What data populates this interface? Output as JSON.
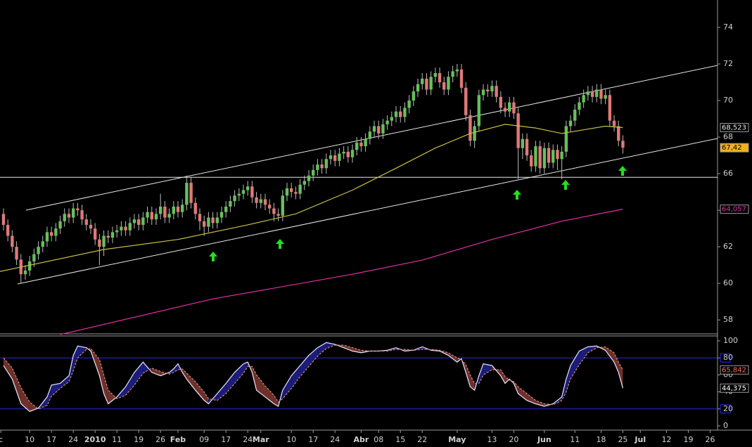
{
  "chart_data": [
    {
      "type": "candlestick",
      "xlim": [
        -0.8,
        163.7
      ],
      "ylim": [
        57.2,
        75.5
      ],
      "yticks": [
        58,
        60,
        62,
        64,
        66,
        68,
        70,
        72,
        74
      ],
      "up_color": "#66c05a",
      "down_color": "#e07878",
      "wick_color": "#bbbbbb",
      "open": [
        63.8,
        63.2,
        62.6,
        62.0,
        61.3,
        60.5,
        60.7,
        61.2,
        61.6,
        62.0,
        62.3,
        62.8,
        62.6,
        63.0,
        63.4,
        63.8,
        63.6,
        64.1,
        64.0,
        63.5,
        63.2,
        63.0,
        62.4,
        62.0,
        62.6,
        62.5,
        62.8,
        62.9,
        63.1,
        62.9,
        63.3,
        63.5,
        63.2,
        63.6,
        63.9,
        63.5,
        63.8,
        64.2,
        63.6,
        63.8,
        64.2,
        63.9,
        64.3,
        65.5,
        64.4,
        63.8,
        63.4,
        63.1,
        63.6,
        63.3,
        63.6,
        63.9,
        64.2,
        64.5,
        64.8,
        64.9,
        65.1,
        65.3,
        64.7,
        64.4,
        64.6,
        64.3,
        64.1,
        63.8,
        63.7,
        64.8,
        65.2,
        65.0,
        64.9,
        65.4,
        65.6,
        65.9,
        66.2,
        66.5,
        66.3,
        66.8,
        67.0,
        66.7,
        67.1,
        67.2,
        66.9,
        67.3,
        67.7,
        67.5,
        67.9,
        68.3,
        68.6,
        68.2,
        68.7,
        68.9,
        69.1,
        69.4,
        69.1,
        69.6,
        70.0,
        70.5,
        70.9,
        71.2,
        70.6,
        71.3,
        71.5,
        71.0,
        70.6,
        71.3,
        71.6,
        71.7,
        70.7,
        69.2,
        67.8,
        68.6,
        70.3,
        70.6,
        70.5,
        70.8,
        70.2,
        69.6,
        69.4,
        69.9,
        69.3,
        67.4,
        67.9,
        67.0,
        66.4,
        67.5,
        66.3,
        67.4,
        66.6,
        67.3,
        66.8,
        67.2,
        68.6,
        68.9,
        69.5,
        69.9,
        70.3,
        70.5,
        70.2,
        70.6,
        70.1,
        70.3,
        68.9,
        68.6,
        67.8
      ],
      "high": [
        64.1,
        63.5,
        62.9,
        62.3,
        61.6,
        61.0,
        61.5,
        61.9,
        62.3,
        62.6,
        63.1,
        63.1,
        63.3,
        63.7,
        64.1,
        64.1,
        64.4,
        64.4,
        64.3,
        63.8,
        63.5,
        63.3,
        62.7,
        62.9,
        62.9,
        63.1,
        63.2,
        63.4,
        63.4,
        63.6,
        63.8,
        63.8,
        63.9,
        64.2,
        64.2,
        64.1,
        64.9,
        64.5,
        64.1,
        64.5,
        64.5,
        64.6,
        65.9,
        65.8,
        64.7,
        64.1,
        63.7,
        63.9,
        63.9,
        63.9,
        64.2,
        64.5,
        64.8,
        65.1,
        65.2,
        65.4,
        65.6,
        65.6,
        65.0,
        64.9,
        64.9,
        64.6,
        64.4,
        64.1,
        65.1,
        65.5,
        65.5,
        65.3,
        65.7,
        65.9,
        66.2,
        66.5,
        66.8,
        66.8,
        67.1,
        67.3,
        67.3,
        67.4,
        67.5,
        67.5,
        67.6,
        68.0,
        68.0,
        68.2,
        68.6,
        68.9,
        68.9,
        69.0,
        69.2,
        69.4,
        69.7,
        69.7,
        69.9,
        70.3,
        70.8,
        71.2,
        71.5,
        71.5,
        71.6,
        71.8,
        71.8,
        71.3,
        71.6,
        71.9,
        72.0,
        72.0,
        71.0,
        69.5,
        68.9,
        70.6,
        70.9,
        70.9,
        71.1,
        71.1,
        70.5,
        69.9,
        70.2,
        70.2,
        69.6,
        68.2,
        68.2,
        67.3,
        67.8,
        67.8,
        67.7,
        67.7,
        67.6,
        67.6,
        67.5,
        68.9,
        69.2,
        69.8,
        70.2,
        70.6,
        70.8,
        70.8,
        70.9,
        70.9,
        70.6,
        70.6,
        69.2,
        68.9,
        68.1
      ],
      "low": [
        62.9,
        62.3,
        61.7,
        61.0,
        60.0,
        60.2,
        60.4,
        60.9,
        61.3,
        61.7,
        62.0,
        62.3,
        62.3,
        62.7,
        63.1,
        63.3,
        63.3,
        63.7,
        63.2,
        62.9,
        62.7,
        62.1,
        61.0,
        61.5,
        62.2,
        62.2,
        62.5,
        62.6,
        62.6,
        62.6,
        63.0,
        62.9,
        62.9,
        63.3,
        63.2,
        63.2,
        63.5,
        63.3,
        63.3,
        63.5,
        63.6,
        63.6,
        64.0,
        64.1,
        63.5,
        62.9,
        62.6,
        62.8,
        63.0,
        63.0,
        63.3,
        63.6,
        63.9,
        64.2,
        64.5,
        64.6,
        64.8,
        64.4,
        64.1,
        64.1,
        64.0,
        63.8,
        63.4,
        63.4,
        63.4,
        64.5,
        64.7,
        64.6,
        64.6,
        65.1,
        65.3,
        65.6,
        65.9,
        66.0,
        66.0,
        66.5,
        66.4,
        66.4,
        66.8,
        66.6,
        66.6,
        67.0,
        67.2,
        67.2,
        67.6,
        68.0,
        67.9,
        67.9,
        68.4,
        68.6,
        68.8,
        68.8,
        68.8,
        69.3,
        69.7,
        70.2,
        70.6,
        70.3,
        70.3,
        71.0,
        70.7,
        70.3,
        70.3,
        71.0,
        71.3,
        70.4,
        68.9,
        67.5,
        67.4,
        68.3,
        70.0,
        70.2,
        70.2,
        69.9,
        69.3,
        69.1,
        69.1,
        69.0,
        65.7,
        66.8,
        66.7,
        66.1,
        66.1,
        66.0,
        66.0,
        66.3,
        66.3,
        66.2,
        65.7,
        66.9,
        68.3,
        68.6,
        69.2,
        69.6,
        70.0,
        69.9,
        69.9,
        69.8,
        69.8,
        68.6,
        68.3,
        67.5,
        67.1
      ],
      "close": [
        63.2,
        62.6,
        62.0,
        61.3,
        60.5,
        60.7,
        61.2,
        61.6,
        62.0,
        62.3,
        62.8,
        62.6,
        63.0,
        63.4,
        63.8,
        63.6,
        64.1,
        64.0,
        63.5,
        63.2,
        63.0,
        62.4,
        62.0,
        62.6,
        62.5,
        62.8,
        62.9,
        63.1,
        62.9,
        63.3,
        63.5,
        63.2,
        63.6,
        63.9,
        63.5,
        63.8,
        64.2,
        63.6,
        63.8,
        64.2,
        63.9,
        64.3,
        65.5,
        64.4,
        63.8,
        63.4,
        63.1,
        63.6,
        63.3,
        63.6,
        63.9,
        64.2,
        64.5,
        64.8,
        64.9,
        65.1,
        65.3,
        64.7,
        64.4,
        64.6,
        64.3,
        64.1,
        63.8,
        63.7,
        64.8,
        65.2,
        65.0,
        64.9,
        65.4,
        65.6,
        65.9,
        66.2,
        66.5,
        66.3,
        66.8,
        67.0,
        66.7,
        67.1,
        67.2,
        66.9,
        67.3,
        67.7,
        67.5,
        67.9,
        68.3,
        68.6,
        68.2,
        68.7,
        68.9,
        69.1,
        69.4,
        69.1,
        69.6,
        70.0,
        70.5,
        70.9,
        71.2,
        70.6,
        71.3,
        71.5,
        71.0,
        70.6,
        71.3,
        71.6,
        71.7,
        70.7,
        69.2,
        67.8,
        68.6,
        70.3,
        70.6,
        70.5,
        70.8,
        70.2,
        69.6,
        69.4,
        69.9,
        69.3,
        67.4,
        67.9,
        67.0,
        66.4,
        67.5,
        66.3,
        67.4,
        66.6,
        67.3,
        66.8,
        67.2,
        68.6,
        68.9,
        69.5,
        69.9,
        70.3,
        70.5,
        70.2,
        70.6,
        70.1,
        70.3,
        68.9,
        68.6,
        67.8,
        67.42
      ],
      "series": [
        {
          "color": "#c8c040",
          "x": [
            -0.8,
            23,
            40,
            56,
            67,
            80,
            90,
            99,
            107,
            115,
            122,
            128,
            133,
            138,
            142
          ],
          "values": [
            60.65,
            61.85,
            62.4,
            63.2,
            63.8,
            65.1,
            66.3,
            67.4,
            68.2,
            68.7,
            68.5,
            68.2,
            68.4,
            68.6,
            68.523
          ]
        },
        {
          "color": "#e030a0",
          "x": [
            13,
            48,
            80,
            96,
            112,
            128,
            142
          ],
          "values": [
            57.2,
            59.15,
            60.5,
            61.27,
            62.4,
            63.4,
            64.057
          ]
        }
      ],
      "support_level": 65.8,
      "end_labels": [
        {
          "value": 68.523,
          "label": "68,523",
          "color": "#e8e8e8",
          "box": "#000000"
        },
        {
          "value": 67.42,
          "label": "67,42",
          "color": "#000000",
          "box": "#f0b020"
        },
        {
          "value": 64.057,
          "label": "64,057",
          "color": "#e030a0",
          "box": "#000000"
        }
      ]
    },
    {
      "type": "line",
      "xlim": [
        -0.8,
        163.7
      ],
      "ylim": [
        -5,
        105.8
      ],
      "yticks": [
        0,
        20,
        40,
        60,
        80,
        100
      ],
      "levels": [
        20,
        80
      ],
      "level_color": "#2a2ae0",
      "fill_above": "#1c1c7a",
      "fill_below": "#70302a",
      "xticks": [
        {
          "value": -0.6,
          "label": "c"
        },
        {
          "value": 6,
          "label": "10"
        },
        {
          "value": 11,
          "label": "17"
        },
        {
          "value": 16,
          "label": "24"
        },
        {
          "value": 21,
          "label": "2010",
          "bold": true
        },
        {
          "value": 26,
          "label": "11"
        },
        {
          "value": 31,
          "label": "19"
        },
        {
          "value": 36,
          "label": "26"
        },
        {
          "value": 40,
          "label": "Feb",
          "bold": true
        },
        {
          "value": 46,
          "label": "09"
        },
        {
          "value": 51,
          "label": "17"
        },
        {
          "value": 56,
          "label": "24"
        },
        {
          "value": 59,
          "label": "Mar",
          "bold": true
        },
        {
          "value": 66,
          "label": "10"
        },
        {
          "value": 71,
          "label": "17"
        },
        {
          "value": 76,
          "label": "24"
        },
        {
          "value": 82,
          "label": "Abr",
          "bold": true
        },
        {
          "value": 86,
          "label": "08"
        },
        {
          "value": 91,
          "label": "15"
        },
        {
          "value": 96,
          "label": "22"
        },
        {
          "value": 104,
          "label": "May",
          "bold": true
        },
        {
          "value": 112,
          "label": "13"
        },
        {
          "value": 117,
          "label": "20"
        },
        {
          "value": 124,
          "label": "Jun",
          "bold": true
        },
        {
          "value": 131,
          "label": "11"
        },
        {
          "value": 137,
          "label": "18"
        },
        {
          "value": 142,
          "label": "25"
        },
        {
          "value": 146,
          "label": "Jul",
          "bold": true
        },
        {
          "value": 152,
          "label": "12"
        },
        {
          "value": 157,
          "label": "19"
        },
        {
          "value": 162,
          "label": "26"
        }
      ],
      "series": [
        {
          "color": "#e8e8ff",
          "dashed": false,
          "x": [
            0,
            2,
            4,
            6,
            8,
            10,
            11,
            13,
            15,
            16,
            17,
            19,
            20,
            22,
            23,
            24,
            26,
            28,
            30,
            32,
            34,
            36,
            38,
            39,
            40,
            41,
            42,
            44,
            46,
            47,
            49,
            51,
            53,
            55,
            56,
            57,
            58,
            60,
            62,
            63,
            64,
            66,
            68,
            70,
            72,
            74,
            76,
            78,
            80,
            82,
            84,
            86,
            88,
            90,
            92,
            94,
            96,
            98,
            100,
            102,
            104,
            105,
            106,
            107,
            108,
            109,
            110,
            112,
            114,
            115,
            116,
            117,
            118,
            120,
            122,
            124,
            126,
            127,
            128,
            129,
            130,
            132,
            134,
            136,
            138,
            140,
            141,
            142
          ],
          "values": [
            71,
            55,
            26,
            17,
            21,
            34,
            48,
            50,
            59,
            83,
            94,
            92,
            88,
            59,
            38,
            26,
            34,
            46,
            63,
            75,
            63,
            59,
            63,
            67,
            73,
            63,
            55,
            42,
            30,
            26,
            38,
            50,
            63,
            73,
            75,
            63,
            42,
            34,
            26,
            23,
            42,
            59,
            71,
            83,
            92,
            98,
            96,
            92,
            88,
            86,
            88,
            88,
            89,
            92,
            88,
            89,
            93,
            89,
            88,
            83,
            75,
            79,
            63,
            46,
            42,
            59,
            73,
            71,
            59,
            50,
            55,
            50,
            38,
            30,
            26,
            23,
            26,
            30,
            34,
            55,
            71,
            88,
            93,
            94,
            89,
            75,
            63,
            44.375
          ]
        },
        {
          "color": "#d08a7a",
          "dashed": true,
          "x": [
            0,
            2,
            4,
            6,
            8,
            10,
            11,
            13,
            15,
            16,
            17,
            19,
            20,
            22,
            23,
            24,
            26,
            28,
            30,
            32,
            34,
            36,
            38,
            39,
            40,
            41,
            42,
            44,
            46,
            47,
            49,
            51,
            53,
            55,
            56,
            57,
            58,
            60,
            62,
            63,
            64,
            66,
            68,
            70,
            72,
            74,
            76,
            78,
            80,
            82,
            84,
            86,
            88,
            90,
            92,
            94,
            96,
            98,
            100,
            102,
            104,
            105,
            106,
            107,
            108,
            109,
            110,
            112,
            114,
            115,
            116,
            117,
            118,
            120,
            122,
            124,
            126,
            127,
            128,
            129,
            130,
            132,
            134,
            136,
            138,
            140,
            141,
            142
          ],
          "values": [
            80,
            68,
            45,
            28,
            20,
            24,
            35,
            44,
            52,
            65,
            80,
            90,
            91,
            78,
            60,
            42,
            32,
            36,
            48,
            62,
            68,
            64,
            61,
            63,
            66,
            67,
            62,
            52,
            40,
            32,
            30,
            38,
            50,
            62,
            70,
            70,
            60,
            47,
            36,
            28,
            32,
            44,
            58,
            70,
            82,
            91,
            95,
            95,
            92,
            89,
            88,
            88,
            88,
            90,
            90,
            89,
            90,
            90,
            89,
            86,
            80,
            78,
            72,
            60,
            50,
            50,
            60,
            66,
            66,
            58,
            54,
            52,
            46,
            38,
            30,
            26,
            25,
            27,
            30,
            40,
            55,
            72,
            86,
            92,
            93,
            86,
            75,
            65.842
          ]
        }
      ],
      "end_labels": [
        {
          "value": 65.842,
          "label": "65,842",
          "color": "#ff6a5a",
          "box": "#000000"
        },
        {
          "value": 44.375,
          "label": "44,375",
          "color": "#ffffff",
          "box": "#000000"
        }
      ]
    }
  ]
}
